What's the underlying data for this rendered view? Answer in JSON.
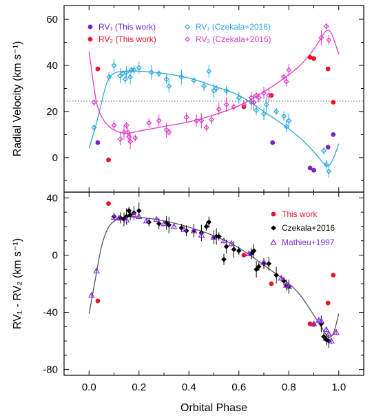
{
  "chart_data": [
    {
      "type": "scatter",
      "ylabel": "Radial Velocity (km s⁻¹)",
      "ylim": [
        -15,
        66
      ],
      "xlim": [
        -0.1,
        1.1
      ],
      "yticks": [
        "60",
        "40",
        "20",
        "0"
      ],
      "grid": false,
      "systemic_velocity": 24.5,
      "legend": [
        "RV₁ (This work)",
        "RV₂ (This work)",
        "RV₁ (Czekala+2016)",
        "RV₂ (Czekala+2016)"
      ],
      "colors": {
        "rv1_this": "#7a1fd1",
        "rv2_this": "#ee1122",
        "rv1_cz": "#29a8e0",
        "rv2_cz": "#e038c8"
      },
      "series": [
        {
          "name": "RV₁ (This work)",
          "marker": "filled-circle",
          "points": [
            [
              0.035,
              6.5
            ],
            [
              0.735,
              6.5
            ],
            [
              0.885,
              -4.5
            ],
            [
              0.9,
              -5.5
            ],
            [
              0.957,
              4.5
            ],
            [
              0.978,
              10
            ]
          ]
        },
        {
          "name": "RV₂ (This work)",
          "marker": "filled-circle",
          "points": [
            [
              0.035,
              38.5
            ],
            [
              0.078,
              -1
            ],
            [
              0.62,
              22
            ],
            [
              0.73,
              27
            ],
            [
              0.885,
              43.5
            ],
            [
              0.9,
              43
            ],
            [
              0.957,
              38.5
            ],
            [
              0.978,
              24
            ]
          ]
        },
        {
          "name": "RV₁ (Czekala+2016)",
          "marker": "open-diamond",
          "points": [
            [
              0.02,
              13
            ],
            [
              0.08,
              35
            ],
            [
              0.1,
              40
            ],
            [
              0.125,
              35.5
            ],
            [
              0.135,
              36.5
            ],
            [
              0.145,
              34
            ],
            [
              0.15,
              37
            ],
            [
              0.165,
              35
            ],
            [
              0.17,
              38
            ],
            [
              0.18,
              38
            ],
            [
              0.2,
              39
            ],
            [
              0.25,
              37
            ],
            [
              0.28,
              36.5
            ],
            [
              0.31,
              34
            ],
            [
              0.32,
              31
            ],
            [
              0.37,
              35
            ],
            [
              0.42,
              33.5
            ],
            [
              0.46,
              31
            ],
            [
              0.48,
              37.5
            ],
            [
              0.5,
              29
            ],
            [
              0.51,
              30
            ],
            [
              0.55,
              29
            ],
            [
              0.6,
              26
            ],
            [
              0.65,
              24
            ],
            [
              0.66,
              24
            ],
            [
              0.67,
              20.5
            ],
            [
              0.7,
              19
            ],
            [
              0.71,
              23
            ],
            [
              0.75,
              20
            ],
            [
              0.78,
              18
            ],
            [
              0.79,
              13.5
            ],
            [
              0.8,
              16
            ],
            [
              0.94,
              3
            ],
            [
              0.95,
              -3
            ],
            [
              0.96,
              -6
            ]
          ]
        },
        {
          "name": "RV₂ (Czekala+2016)",
          "marker": "open-diamond",
          "points": [
            [
              0.02,
              24
            ],
            [
              0.1,
              14
            ],
            [
              0.125,
              8
            ],
            [
              0.14,
              11
            ],
            [
              0.15,
              14
            ],
            [
              0.155,
              11
            ],
            [
              0.16,
              9
            ],
            [
              0.165,
              7
            ],
            [
              0.185,
              8.5
            ],
            [
              0.24,
              15
            ],
            [
              0.28,
              16
            ],
            [
              0.31,
              12
            ],
            [
              0.32,
              11
            ],
            [
              0.39,
              17.5
            ],
            [
              0.43,
              16
            ],
            [
              0.45,
              16
            ],
            [
              0.47,
              13
            ],
            [
              0.49,
              16.5
            ],
            [
              0.52,
              21
            ],
            [
              0.55,
              23
            ],
            [
              0.58,
              22
            ],
            [
              0.62,
              23
            ],
            [
              0.65,
              26
            ],
            [
              0.66,
              24
            ],
            [
              0.67,
              27
            ],
            [
              0.68,
              26
            ],
            [
              0.7,
              28
            ],
            [
              0.72,
              27
            ],
            [
              0.78,
              35
            ],
            [
              0.79,
              33
            ],
            [
              0.8,
              38
            ],
            [
              0.93,
              52
            ],
            [
              0.95,
              57
            ],
            [
              0.96,
              51
            ]
          ]
        },
        {
          "name": "fit-primary",
          "marker": "curve",
          "points": [
            [
              0.0,
              4
            ],
            [
              0.03,
              15
            ],
            [
              0.07,
              32
            ],
            [
              0.1,
              36.5
            ],
            [
              0.15,
              37.5
            ],
            [
              0.2,
              37.5
            ],
            [
              0.3,
              36.5
            ],
            [
              0.4,
              34.5
            ],
            [
              0.5,
              31
            ],
            [
              0.6,
              27
            ],
            [
              0.7,
              20
            ],
            [
              0.8,
              12.5
            ],
            [
              0.85,
              8
            ],
            [
              0.9,
              2.5
            ],
            [
              0.94,
              -2.5
            ],
            [
              0.96,
              -3.5
            ],
            [
              0.98,
              0
            ],
            [
              1.0,
              6
            ]
          ]
        },
        {
          "name": "fit-secondary",
          "marker": "curve",
          "points": [
            [
              0.0,
              46
            ],
            [
              0.03,
              24
            ],
            [
              0.06,
              16
            ],
            [
              0.1,
              12
            ],
            [
              0.15,
              10.5
            ],
            [
              0.2,
              11.5
            ],
            [
              0.3,
              13.5
            ],
            [
              0.4,
              15.5
            ],
            [
              0.5,
              18.5
            ],
            [
              0.6,
              22.5
            ],
            [
              0.7,
              28.5
            ],
            [
              0.8,
              36
            ],
            [
              0.85,
              40.5
            ],
            [
              0.9,
              47
            ],
            [
              0.93,
              52
            ],
            [
              0.95,
              55
            ],
            [
              0.97,
              54
            ],
            [
              1.0,
              45
            ]
          ]
        }
      ]
    },
    {
      "type": "scatter",
      "xlabel": "Orbital Phase",
      "ylabel": "RV₁ - RV₂ (km s⁻¹)",
      "ylim": [
        -84,
        44
      ],
      "xlim": [
        -0.1,
        1.1
      ],
      "xticks": [
        "0.0",
        "0.2",
        "0.4",
        "0.6",
        "0.8",
        "1.0"
      ],
      "yticks": [
        "40",
        "0",
        "-40",
        "-80"
      ],
      "grid": false,
      "legend": [
        "This work",
        "Czekala+2016",
        "Mathieu+1997"
      ],
      "colors": {
        "this": "#ee1122",
        "cz": "#000000",
        "mathieu": "#8a2be2"
      },
      "series": [
        {
          "name": "This work",
          "marker": "filled-circle",
          "points": [
            [
              0.035,
              -32
            ],
            [
              0.078,
              36
            ],
            [
              0.62,
              0
            ],
            [
              0.73,
              -20
            ],
            [
              0.885,
              -48
            ],
            [
              0.9,
              -48.5
            ],
            [
              0.957,
              -33.5
            ],
            [
              0.978,
              -14
            ]
          ]
        },
        {
          "name": "Czekala+2016",
          "marker": "filled-diamond",
          "points": [
            [
              0.1,
              27
            ],
            [
              0.125,
              26
            ],
            [
              0.14,
              25
            ],
            [
              0.15,
              27
            ],
            [
              0.16,
              31
            ],
            [
              0.165,
              28
            ],
            [
              0.18,
              29.5
            ],
            [
              0.2,
              31
            ],
            [
              0.24,
              23
            ],
            [
              0.28,
              22
            ],
            [
              0.31,
              22.5
            ],
            [
              0.32,
              21
            ],
            [
              0.37,
              19
            ],
            [
              0.39,
              17
            ],
            [
              0.42,
              17
            ],
            [
              0.45,
              15.5
            ],
            [
              0.47,
              20
            ],
            [
              0.48,
              23
            ],
            [
              0.5,
              12.5
            ],
            [
              0.51,
              13
            ],
            [
              0.52,
              13
            ],
            [
              0.54,
              -3
            ],
            [
              0.55,
              6
            ],
            [
              0.58,
              4
            ],
            [
              0.6,
              3
            ],
            [
              0.65,
              1
            ],
            [
              0.66,
              3
            ],
            [
              0.67,
              -10
            ],
            [
              0.68,
              -8
            ],
            [
              0.7,
              -6
            ],
            [
              0.72,
              -6
            ],
            [
              0.75,
              -14
            ],
            [
              0.78,
              -18
            ],
            [
              0.79,
              -21
            ],
            [
              0.8,
              -22
            ],
            [
              0.93,
              -48
            ],
            [
              0.94,
              -57
            ],
            [
              0.95,
              -59
            ],
            [
              0.96,
              -60
            ]
          ]
        },
        {
          "name": "Mathieu+1997",
          "marker": "open-triangle",
          "points": [
            [
              0.01,
              -28
            ],
            [
              0.03,
              -11
            ],
            [
              0.1,
              26.5
            ],
            [
              0.12,
              26
            ],
            [
              0.15,
              24.5
            ],
            [
              0.18,
              28
            ],
            [
              0.2,
              27
            ],
            [
              0.23,
              24
            ],
            [
              0.27,
              25
            ],
            [
              0.3,
              22
            ],
            [
              0.34,
              20
            ],
            [
              0.38,
              18
            ],
            [
              0.42,
              17
            ],
            [
              0.45,
              14
            ],
            [
              0.5,
              12.5
            ],
            [
              0.54,
              10
            ],
            [
              0.57,
              8
            ],
            [
              0.64,
              1
            ],
            [
              0.7,
              -5
            ],
            [
              0.77,
              -16
            ],
            [
              0.79,
              -21
            ],
            [
              0.8,
              -22
            ],
            [
              0.9,
              -48
            ],
            [
              0.92,
              -45.5
            ],
            [
              0.93,
              -46
            ],
            [
              0.95,
              -52
            ],
            [
              0.96,
              -55
            ],
            [
              0.97,
              -60
            ],
            [
              0.99,
              -54
            ]
          ]
        },
        {
          "name": "fit-difference",
          "marker": "curve",
          "points": [
            [
              0.0,
              -41
            ],
            [
              0.02,
              -22
            ],
            [
              0.05,
              6
            ],
            [
              0.08,
              20
            ],
            [
              0.12,
              25.5
            ],
            [
              0.16,
              27
            ],
            [
              0.2,
              26.5
            ],
            [
              0.3,
              24
            ],
            [
              0.4,
              19.5
            ],
            [
              0.5,
              13.5
            ],
            [
              0.6,
              5
            ],
            [
              0.7,
              -7
            ],
            [
              0.8,
              -20
            ],
            [
              0.85,
              -29
            ],
            [
              0.9,
              -42
            ],
            [
              0.94,
              -53
            ],
            [
              0.96,
              -57.5
            ],
            [
              0.98,
              -54
            ],
            [
              1.0,
              -41
            ]
          ]
        }
      ]
    }
  ]
}
